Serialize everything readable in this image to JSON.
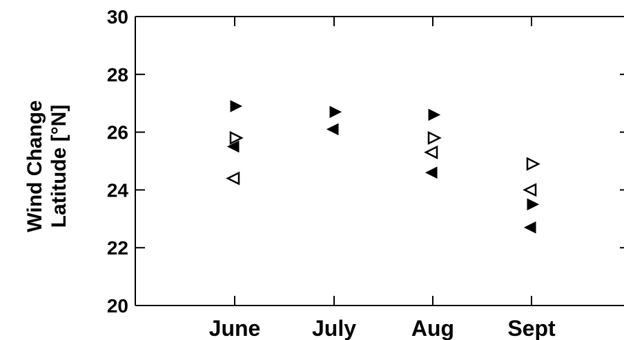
{
  "chart_data": {
    "type": "scatter",
    "title": "",
    "ylabel_lines": [
      "Wind Change",
      "Latitude [°N]"
    ],
    "xlabel": "",
    "categories": [
      "June",
      "July",
      "Aug",
      "Sept"
    ],
    "ylim": [
      20,
      30
    ],
    "yticks": [
      20,
      22,
      24,
      26,
      28,
      30
    ],
    "grid": false,
    "series": [
      {
        "marker": "triangle-right",
        "filled": true,
        "values": [
          26.9,
          26.7,
          26.6,
          23.5
        ]
      },
      {
        "marker": "triangle-left",
        "filled": true,
        "values": [
          25.5,
          26.1,
          24.6,
          22.7
        ]
      },
      {
        "marker": "triangle-right",
        "filled": false,
        "values": [
          25.8,
          null,
          25.8,
          24.9
        ]
      },
      {
        "marker": "triangle-left",
        "filled": false,
        "values": [
          24.4,
          null,
          25.3,
          24.0
        ]
      }
    ],
    "marker_color": "#000000"
  }
}
